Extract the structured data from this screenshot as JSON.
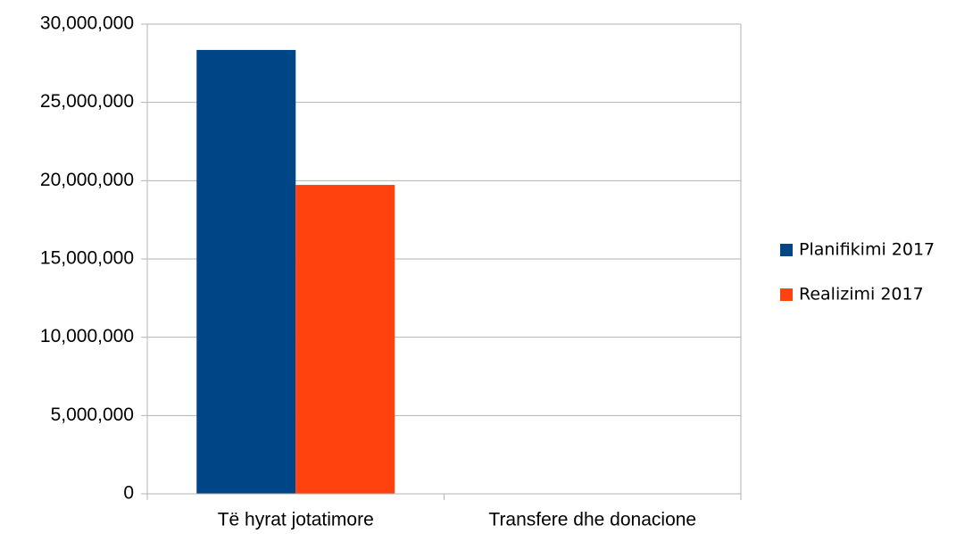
{
  "chart_data": {
    "type": "bar",
    "categories": [
      "Të hyrat jotatimore",
      "Transfere dhe donacione"
    ],
    "series": [
      {
        "name": "Planifikimi 2017",
        "color": "#004586",
        "values": [
          28350000,
          0
        ]
      },
      {
        "name": "Realizimi 2017",
        "color": "#ff420e",
        "values": [
          19730000,
          0
        ]
      }
    ],
    "ylim": [
      0,
      30000000
    ],
    "yticks": [
      0,
      {
        "value": 5000000,
        "label": "5,000,000"
      },
      {
        "value": 10000000,
        "label": "10,000,000"
      },
      {
        "value": 15000000,
        "label": "15,000,000"
      },
      {
        "value": 20000000,
        "label": "20,000,000"
      },
      {
        "value": 25000000,
        "label": "25,000,000"
      },
      {
        "value": 30000000,
        "label": "30,000,000"
      }
    ],
    "grid": true,
    "legend": "right"
  }
}
